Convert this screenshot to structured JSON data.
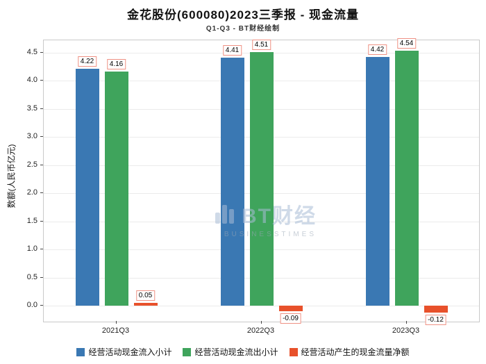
{
  "watermark": {
    "brand": "BT财经",
    "sub": "BUSINESSTIMES"
  },
  "chart_data": {
    "type": "bar",
    "title": "金花股份(600080)2023三季报 - 现金流量",
    "subtitle": "Q1-Q3 - BT财经绘制",
    "ylabel": "数额(人民币亿元)",
    "categories": [
      "2021Q3",
      "2022Q3",
      "2023Q3"
    ],
    "series": [
      {
        "name": "经营活动现金流入小计",
        "color": "#3a78b3",
        "values": [
          4.22,
          4.41,
          4.42
        ]
      },
      {
        "name": "经营活动现金流出小计",
        "color": "#3fa45c",
        "values": [
          4.16,
          4.51,
          4.54
        ]
      },
      {
        "name": "经营活动产生的现金流量净额",
        "color": "#e8512b",
        "values": [
          0.05,
          -0.09,
          -0.12
        ]
      }
    ],
    "yticks": [
      0.0,
      0.5,
      1.0,
      1.5,
      2.0,
      2.5,
      3.0,
      3.5,
      4.0,
      4.5
    ],
    "ylim": [
      -0.28,
      4.72
    ],
    "grid": true,
    "legend_position": "bottom",
    "label_box_border": "#ef9184"
  }
}
